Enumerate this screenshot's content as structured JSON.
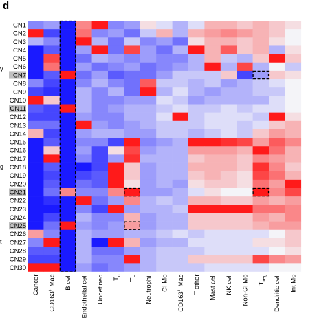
{
  "panel_label": "d",
  "edge_fragments": [
    "y",
    "g",
    "t"
  ],
  "colors": {
    "low": "#1a1aff",
    "mid": "#f4f4f8",
    "high": "#ff1a1a",
    "highlight": "#c0c0c0"
  },
  "chart_data": {
    "type": "heatmap",
    "title": "",
    "xlabel": "",
    "ylabel": "",
    "value_range": [
      -1,
      1
    ],
    "rows": [
      "CN1",
      "CN2",
      "CN3",
      "CN4",
      "CN5",
      "CN6",
      "CN7",
      "CN8",
      "CN9",
      "CN10",
      "CN11",
      "CN12",
      "CN13",
      "CN14",
      "CN15",
      "CN16",
      "CN17",
      "CN18",
      "CN19",
      "CN20",
      "CN21",
      "CN22",
      "CN23",
      "CN24",
      "CN25",
      "CN26",
      "CN27",
      "CN28",
      "CN29",
      "CN30"
    ],
    "highlighted_rows": [
      "CN7",
      "CN11",
      "CN21",
      "CN25"
    ],
    "columns": [
      {
        "text": "Cancer"
      },
      {
        "text": "CD163",
        "sup": "+",
        "after": " Mac"
      },
      {
        "text": "B cell"
      },
      {
        "text": "Endothelial cell"
      },
      {
        "text": "Undefined"
      },
      {
        "text": "T",
        "sub": "c"
      },
      {
        "text": "T",
        "sub": "H"
      },
      {
        "text": "Neutrophil"
      },
      {
        "text": "CI Mo"
      },
      {
        "text": "CD163",
        "sup": "+",
        "after": " Mac"
      },
      {
        "text": "T other"
      },
      {
        "text": "Mast cell"
      },
      {
        "text": "NK cell"
      },
      {
        "text": "Non-CI Mo"
      },
      {
        "text": "T",
        "sub": "reg"
      },
      {
        "text": "Dendritic cell"
      },
      {
        "text": "Int Mo"
      }
    ],
    "dashed_boxes": [
      {
        "row_start": 0,
        "row_end": 29,
        "col": 2
      },
      {
        "row_start": 6,
        "row_end": 6,
        "col": 14
      },
      {
        "row_start": 20,
        "row_end": 20,
        "col": 6
      },
      {
        "row_start": 20,
        "row_end": 20,
        "col": 14
      },
      {
        "row_start": 24,
        "row_end": 24,
        "col": 6
      }
    ],
    "values": [
      [
        -0.5,
        -0.4,
        -1,
        0.5,
        1,
        -0.5,
        -0.4,
        0.1,
        -0.1,
        -0.3,
        -0.1,
        0.3,
        0.3,
        0.2,
        0.3,
        0.2,
        0.1
      ],
      [
        1,
        -0.8,
        -1,
        0.6,
        -0.5,
        -0.4,
        -0.6,
        -0.2,
        0.3,
        -0.3,
        0.3,
        0.4,
        0.5,
        0.4,
        0.3,
        0.2,
        0
      ],
      [
        -0.3,
        -0.5,
        -1,
        1,
        -0.3,
        -0.6,
        -0.2,
        -0.5,
        -0.4,
        -0.6,
        0.1,
        0.3,
        0.3,
        0.2,
        0.3,
        0.1,
        0
      ],
      [
        -1,
        -0.7,
        -1,
        -0.4,
        1,
        -0.6,
        0.8,
        -0.4,
        -0.6,
        -0.3,
        1,
        0.3,
        0.7,
        0.2,
        0.3,
        -0.3,
        0.1
      ],
      [
        -1,
        0.8,
        -1,
        -0.6,
        -0.3,
        -0.4,
        -0.5,
        -0.4,
        -0.5,
        -0.5,
        -0.3,
        0.3,
        -0.2,
        -0.3,
        0.2,
        1,
        0.2
      ],
      [
        -1,
        0.6,
        -1,
        -0.4,
        -0.6,
        -0.5,
        -0.4,
        -0.6,
        -0.5,
        -0.4,
        -0.3,
        1,
        -0.3,
        0.8,
        -0.3,
        0,
        -0.2
      ],
      [
        -1,
        -0.7,
        1,
        -0.6,
        -0.4,
        -0.7,
        -0.6,
        -0.6,
        -0.4,
        -0.2,
        -0.2,
        -0.2,
        0.2,
        -0.8,
        -0.4,
        0.2,
        0.1
      ],
      [
        -0.5,
        -0.8,
        -1,
        -0.5,
        -0.3,
        -0.5,
        -0.6,
        0.7,
        -0.2,
        -0.2,
        -0.3,
        -0.2,
        -0.4,
        -0.3,
        -0.2,
        -0.1,
        0
      ],
      [
        -0.8,
        -0.9,
        -1,
        -0.3,
        -0.5,
        -0.3,
        -0.6,
        1,
        -0.3,
        -0.1,
        -0.3,
        -0.4,
        -0.3,
        -0.3,
        -0.2,
        -0.2,
        0
      ],
      [
        1,
        0.2,
        -1,
        -0.3,
        -0.5,
        -0.5,
        -0.4,
        -0.4,
        -0.1,
        -0.2,
        -0.4,
        -0.3,
        -0.3,
        -0.3,
        -0.3,
        -0.1,
        0
      ],
      [
        -0.7,
        -0.8,
        1,
        -0.3,
        -0.5,
        -0.4,
        -0.3,
        -0.3,
        -0.2,
        -0.1,
        -0.2,
        -0.2,
        -0.1,
        -0.2,
        -0.1,
        -0.1,
        0
      ],
      [
        -0.8,
        -0.8,
        -1,
        -0.4,
        -0.5,
        -0.5,
        -0.3,
        -0.3,
        -0.1,
        1,
        -0.2,
        -0.1,
        -0.1,
        -0.1,
        -0.2,
        1,
        0.1
      ],
      [
        -0.6,
        -0.6,
        -1,
        1,
        -0.4,
        -0.5,
        -0.4,
        -0.3,
        -0.2,
        -0.2,
        -0.2,
        -0.1,
        -0.1,
        -0.2,
        -0.1,
        0.2,
        0.3
      ],
      [
        0.3,
        -0.8,
        -1,
        -0.4,
        -0.3,
        -0.3,
        -0.4,
        -0.4,
        -0.2,
        -0.2,
        -0.3,
        -0.2,
        -0.1,
        -0.2,
        0.2,
        0.4,
        0.3
      ],
      [
        -1,
        -0.7,
        -1,
        -0.5,
        -0.5,
        -0.8,
        1,
        -0.5,
        -0.4,
        -0.3,
        1,
        1,
        0.9,
        0.8,
        0.4,
        0.7,
        0.5
      ],
      [
        -1,
        0.2,
        -1,
        -0.4,
        -0.8,
        0.1,
        0.8,
        -0.4,
        -0.3,
        -0.3,
        0.4,
        0.4,
        0.4,
        0.3,
        1,
        0.6,
        0.3
      ],
      [
        -1,
        1,
        -1,
        -0.5,
        -0.8,
        -0.4,
        0.9,
        -0.3,
        -0.3,
        -0.3,
        0.2,
        0.3,
        0.3,
        0.2,
        0.5,
        0.4,
        0.3
      ],
      [
        -1,
        -0.7,
        -1,
        -1,
        -0.8,
        1,
        0.2,
        -0.4,
        -0.3,
        -0.3,
        0.3,
        0.3,
        0.3,
        0.2,
        0.9,
        0.5,
        0.2
      ],
      [
        -1,
        -0.8,
        -1,
        -0.8,
        -0.7,
        1,
        0.2,
        -0.4,
        -0.3,
        -0.3,
        0.2,
        0.3,
        0.2,
        0.1,
        0.8,
        0.6,
        0.3
      ],
      [
        -1,
        -0.7,
        -1,
        -0.6,
        -0.7,
        1,
        0.1,
        -0.4,
        -0.3,
        -0.4,
        0.1,
        0.2,
        0.2,
        0.1,
        0.6,
        0.4,
        1
      ],
      [
        -1,
        -0.6,
        0.5,
        -0.5,
        -0.5,
        0.5,
        1,
        -0.4,
        -0.4,
        -0.3,
        -0.1,
        0.1,
        0,
        0,
        1,
        0.5,
        0.8
      ],
      [
        -1,
        -0.9,
        -1,
        1,
        -0.6,
        -0.4,
        0.5,
        -0.3,
        -0.2,
        -0.3,
        0.3,
        0.3,
        0.2,
        0.2,
        0.4,
        0.3,
        0.4
      ],
      [
        -1,
        -1,
        -1,
        -0.5,
        -0.8,
        1,
        -0.4,
        -0.3,
        -0.3,
        -0.2,
        1,
        1,
        1,
        1,
        0.6,
        0.6,
        0.5
      ],
      [
        -1,
        -0.8,
        -1,
        -0.3,
        -0.5,
        -0.5,
        0.3,
        -0.4,
        -0.3,
        -0.3,
        0.2,
        0.2,
        0.2,
        0.2,
        0.4,
        0.3,
        0.5
      ],
      [
        -1,
        -0.6,
        1,
        -0.4,
        -0.5,
        -0.4,
        0.4,
        -0.4,
        -0.3,
        -0.3,
        0.2,
        0.2,
        0.2,
        0.2,
        0.3,
        0.4,
        0.4
      ],
      [
        0.4,
        -0.5,
        -1,
        -0.3,
        -0.4,
        -0.4,
        -0.3,
        -0.3,
        -0.2,
        -0.1,
        -0.2,
        -0.1,
        -0.1,
        -0.1,
        -0.1,
        0,
        0.2
      ],
      [
        -0.5,
        1,
        -1,
        -0.3,
        -1,
        1,
        0.3,
        -0.4,
        -0.3,
        -0.3,
        -0.1,
        -0.1,
        -0.1,
        -0.1,
        0.1,
        0.1,
        0.2
      ],
      [
        -0.7,
        -0.7,
        -1,
        -0.3,
        -0.6,
        -0.6,
        -0.4,
        -0.3,
        -0.2,
        -0.2,
        -0.2,
        -0.1,
        -0.1,
        -0.1,
        -0.1,
        0,
        0.1
      ],
      [
        -0.8,
        -0.8,
        -1,
        -0.3,
        -0.5,
        -0.5,
        1,
        -0.3,
        -0.2,
        -0.2,
        0.2,
        0.2,
        0.2,
        0.2,
        0.8,
        0.5,
        0.4
      ],
      [
        1,
        1,
        -1,
        -0.4,
        -0.6,
        -0.5,
        -0.4,
        -0.3,
        -0.2,
        -0.2,
        -0.2,
        -0.1,
        -0.1,
        -0.1,
        -0.1,
        0,
        0
      ]
    ]
  }
}
